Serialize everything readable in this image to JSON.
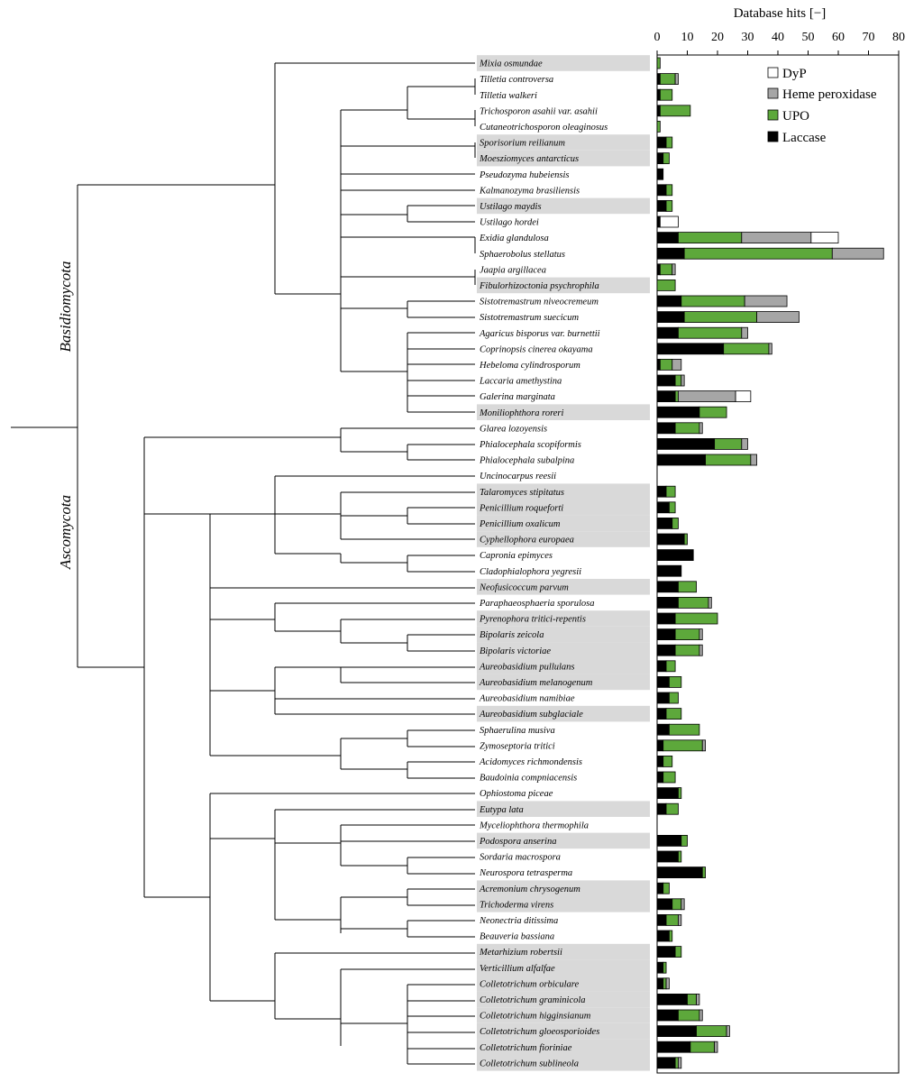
{
  "chart_data": {
    "type": "bar",
    "orientation": "horizontal",
    "stacked": true,
    "xlabel": "Database hits [−]",
    "xlim": [
      0,
      80
    ],
    "xticks": [
      0,
      10,
      20,
      30,
      40,
      50,
      60,
      70,
      80
    ],
    "legend": {
      "position": "top-right",
      "entries": [
        {
          "name": "DyP",
          "color": "#ffffff"
        },
        {
          "name": "Heme peroxidase",
          "color": "#a6a6a6"
        },
        {
          "name": "UPO",
          "color": "#5da83b"
        },
        {
          "name": "Laccase",
          "color": "#000000"
        }
      ]
    },
    "stack_order": [
      "Laccase",
      "UPO",
      "Heme peroxidase",
      "DyP"
    ],
    "colors": {
      "Laccase": "#000000",
      "UPO": "#5da83b",
      "Heme peroxidase": "#a6a6a6",
      "DyP": "#ffffff",
      "highlight": "#d9d9d9"
    },
    "phyla": [
      "Basidiomycota",
      "Ascomycota"
    ],
    "species": [
      {
        "name": "Mixia osmundae",
        "highlight": true,
        "Laccase": 0,
        "UPO": 1,
        "Heme peroxidase": 0,
        "DyP": 0
      },
      {
        "name": "Tilletia controversa",
        "highlight": false,
        "Laccase": 1,
        "UPO": 5,
        "Heme peroxidase": 1,
        "DyP": 0
      },
      {
        "name": "Tilletia walkeri",
        "highlight": false,
        "Laccase": 1,
        "UPO": 4,
        "Heme peroxidase": 0,
        "DyP": 0
      },
      {
        "name": "Trichosporon asahii var. asahii",
        "highlight": false,
        "Laccase": 1,
        "UPO": 10,
        "Heme peroxidase": 0,
        "DyP": 0
      },
      {
        "name": "Cutaneotrichosporon oleaginosus",
        "highlight": false,
        "Laccase": 0,
        "UPO": 1,
        "Heme peroxidase": 0,
        "DyP": 0
      },
      {
        "name": "Sporisorium reilianum",
        "highlight": true,
        "Laccase": 3,
        "UPO": 2,
        "Heme peroxidase": 0,
        "DyP": 0
      },
      {
        "name": "Moesziomyces antarcticus",
        "highlight": true,
        "Laccase": 2,
        "UPO": 2,
        "Heme peroxidase": 0,
        "DyP": 0
      },
      {
        "name": "Pseudozyma hubeiensis",
        "highlight": false,
        "Laccase": 2,
        "UPO": 0,
        "Heme peroxidase": 0,
        "DyP": 0
      },
      {
        "name": "Kalmanozyma brasiliensis",
        "highlight": false,
        "Laccase": 3,
        "UPO": 2,
        "Heme peroxidase": 0,
        "DyP": 0
      },
      {
        "name": "Ustilago maydis",
        "highlight": true,
        "Laccase": 3,
        "UPO": 2,
        "Heme peroxidase": 0,
        "DyP": 0
      },
      {
        "name": "Ustilago hordei",
        "highlight": false,
        "Laccase": 1,
        "UPO": 0,
        "Heme peroxidase": 0,
        "DyP": 6
      },
      {
        "name": "Exidia glandulosa",
        "highlight": false,
        "Laccase": 7,
        "UPO": 21,
        "Heme peroxidase": 23,
        "DyP": 9
      },
      {
        "name": "Sphaerobolus stellatus",
        "highlight": false,
        "Laccase": 9,
        "UPO": 49,
        "Heme peroxidase": 17,
        "DyP": 0
      },
      {
        "name": "Jaapia argillacea",
        "highlight": false,
        "Laccase": 1,
        "UPO": 4,
        "Heme peroxidase": 1,
        "DyP": 0
      },
      {
        "name": "Fibulorhizoctonia psychrophila",
        "highlight": true,
        "Laccase": 0,
        "UPO": 6,
        "Heme peroxidase": 0,
        "DyP": 0
      },
      {
        "name": "Sistotremastrum niveocremeum",
        "highlight": false,
        "Laccase": 8,
        "UPO": 21,
        "Heme peroxidase": 14,
        "DyP": 0
      },
      {
        "name": "Sistotremastrum suecicum",
        "highlight": false,
        "Laccase": 9,
        "UPO": 24,
        "Heme peroxidase": 14,
        "DyP": 0
      },
      {
        "name": "Agaricus bisporus var. burnettii",
        "highlight": false,
        "Laccase": 7,
        "UPO": 21,
        "Heme peroxidase": 2,
        "DyP": 0
      },
      {
        "name": "Coprinopsis cinerea okayama",
        "highlight": false,
        "Laccase": 22,
        "UPO": 15,
        "Heme peroxidase": 1,
        "DyP": 0
      },
      {
        "name": "Hebeloma cylindrosporum",
        "highlight": false,
        "Laccase": 1,
        "UPO": 4,
        "Heme peroxidase": 3,
        "DyP": 0
      },
      {
        "name": "Laccaria amethystina",
        "highlight": false,
        "Laccase": 6,
        "UPO": 2,
        "Heme peroxidase": 1,
        "DyP": 0
      },
      {
        "name": "Galerina marginata",
        "highlight": false,
        "Laccase": 6,
        "UPO": 1,
        "Heme peroxidase": 19,
        "DyP": 5
      },
      {
        "name": "Moniliophthora roreri",
        "highlight": true,
        "Laccase": 14,
        "UPO": 9,
        "Heme peroxidase": 0,
        "DyP": 0
      },
      {
        "name": "Glarea lozoyensis",
        "highlight": false,
        "Laccase": 6,
        "UPO": 8,
        "Heme peroxidase": 1,
        "DyP": 0
      },
      {
        "name": "Phialocephala scopiformis",
        "highlight": false,
        "Laccase": 19,
        "UPO": 9,
        "Heme peroxidase": 2,
        "DyP": 0
      },
      {
        "name": "Phialocephala subalpina",
        "highlight": false,
        "Laccase": 16,
        "UPO": 15,
        "Heme peroxidase": 2,
        "DyP": 0
      },
      {
        "name": "Uncinocarpus reesii",
        "highlight": false,
        "Laccase": 0,
        "UPO": 0,
        "Heme peroxidase": 0,
        "DyP": 0
      },
      {
        "name": "Talaromyces stipitatus",
        "highlight": true,
        "Laccase": 3,
        "UPO": 3,
        "Heme peroxidase": 0,
        "DyP": 0
      },
      {
        "name": "Penicillium roqueforti",
        "highlight": true,
        "Laccase": 4,
        "UPO": 2,
        "Heme peroxidase": 0,
        "DyP": 0
      },
      {
        "name": "Penicillium oxalicum",
        "highlight": true,
        "Laccase": 5,
        "UPO": 2,
        "Heme peroxidase": 0,
        "DyP": 0
      },
      {
        "name": "Cyphellophora europaea",
        "highlight": true,
        "Laccase": 9,
        "UPO": 1,
        "Heme peroxidase": 0,
        "DyP": 0
      },
      {
        "name": "Capronia epimyces",
        "highlight": false,
        "Laccase": 12,
        "UPO": 0,
        "Heme peroxidase": 0,
        "DyP": 0
      },
      {
        "name": "Cladophialophora yegresii",
        "highlight": false,
        "Laccase": 8,
        "UPO": 0,
        "Heme peroxidase": 0,
        "DyP": 0
      },
      {
        "name": "Neofusicoccum parvum",
        "highlight": true,
        "Laccase": 7,
        "UPO": 6,
        "Heme peroxidase": 0,
        "DyP": 0
      },
      {
        "name": "Paraphaeosphaeria sporulosa",
        "highlight": false,
        "Laccase": 7,
        "UPO": 10,
        "Heme peroxidase": 1,
        "DyP": 0
      },
      {
        "name": "Pyrenophora tritici-repentis",
        "highlight": true,
        "Laccase": 6,
        "UPO": 14,
        "Heme peroxidase": 0,
        "DyP": 0
      },
      {
        "name": "Bipolaris zeicola",
        "highlight": true,
        "Laccase": 6,
        "UPO": 8,
        "Heme peroxidase": 1,
        "DyP": 0
      },
      {
        "name": "Bipolaris victoriae",
        "highlight": true,
        "Laccase": 6,
        "UPO": 8,
        "Heme peroxidase": 1,
        "DyP": 0
      },
      {
        "name": "Aureobasidium pullulans",
        "highlight": true,
        "Laccase": 3,
        "UPO": 3,
        "Heme peroxidase": 0,
        "DyP": 0
      },
      {
        "name": "Aureobasidium melanogenum",
        "highlight": true,
        "Laccase": 4,
        "UPO": 4,
        "Heme peroxidase": 0,
        "DyP": 0
      },
      {
        "name": "Aureobasidium namibiae",
        "highlight": false,
        "Laccase": 4,
        "UPO": 3,
        "Heme peroxidase": 0,
        "DyP": 0
      },
      {
        "name": "Aureobasidium subglaciale",
        "highlight": true,
        "Laccase": 3,
        "UPO": 5,
        "Heme peroxidase": 0,
        "DyP": 0
      },
      {
        "name": "Sphaerulina musiva",
        "highlight": false,
        "Laccase": 4,
        "UPO": 10,
        "Heme peroxidase": 0,
        "DyP": 0
      },
      {
        "name": "Zymoseptoria tritici",
        "highlight": false,
        "Laccase": 2,
        "UPO": 13,
        "Heme peroxidase": 1,
        "DyP": 0
      },
      {
        "name": "Acidomyces richmondensis",
        "highlight": false,
        "Laccase": 2,
        "UPO": 3,
        "Heme peroxidase": 0,
        "DyP": 0
      },
      {
        "name": "Baudoinia compniacensis",
        "highlight": false,
        "Laccase": 2,
        "UPO": 4,
        "Heme peroxidase": 0,
        "DyP": 0
      },
      {
        "name": "Ophiostoma piceae",
        "highlight": false,
        "Laccase": 7,
        "UPO": 1,
        "Heme peroxidase": 0,
        "DyP": 0
      },
      {
        "name": "Eutypa lata",
        "highlight": true,
        "Laccase": 3,
        "UPO": 4,
        "Heme peroxidase": 0,
        "DyP": 0
      },
      {
        "name": "Myceliophthora thermophila",
        "highlight": false,
        "Laccase": 0,
        "UPO": 0,
        "Heme peroxidase": 0,
        "DyP": 0
      },
      {
        "name": "Podospora anserina",
        "highlight": true,
        "Laccase": 8,
        "UPO": 2,
        "Heme peroxidase": 0,
        "DyP": 0
      },
      {
        "name": "Sordaria macrospora",
        "highlight": false,
        "Laccase": 7,
        "UPO": 1,
        "Heme peroxidase": 0,
        "DyP": 0
      },
      {
        "name": "Neurospora tetrasperma",
        "highlight": false,
        "Laccase": 15,
        "UPO": 1,
        "Heme peroxidase": 0,
        "DyP": 0
      },
      {
        "name": "Acremonium chrysogenum",
        "highlight": true,
        "Laccase": 2,
        "UPO": 2,
        "Heme peroxidase": 0,
        "DyP": 0
      },
      {
        "name": "Trichoderma virens",
        "highlight": true,
        "Laccase": 5,
        "UPO": 3,
        "Heme peroxidase": 1,
        "DyP": 0
      },
      {
        "name": "Neonectria ditissima",
        "highlight": false,
        "Laccase": 3,
        "UPO": 4,
        "Heme peroxidase": 1,
        "DyP": 0
      },
      {
        "name": "Beauveria bassiana",
        "highlight": false,
        "Laccase": 4,
        "UPO": 1,
        "Heme peroxidase": 0,
        "DyP": 0
      },
      {
        "name": "Metarhizium robertsii",
        "highlight": true,
        "Laccase": 6,
        "UPO": 2,
        "Heme peroxidase": 0,
        "DyP": 0
      },
      {
        "name": "Verticillium alfalfae",
        "highlight": true,
        "Laccase": 2,
        "UPO": 1,
        "Heme peroxidase": 0,
        "DyP": 0
      },
      {
        "name": "Colletotrichum orbiculare",
        "highlight": true,
        "Laccase": 2,
        "UPO": 1,
        "Heme peroxidase": 1,
        "DyP": 0
      },
      {
        "name": "Colletotrichum graminicola",
        "highlight": true,
        "Laccase": 10,
        "UPO": 3,
        "Heme peroxidase": 1,
        "DyP": 0
      },
      {
        "name": "Colletotrichum higginsianum",
        "highlight": true,
        "Laccase": 7,
        "UPO": 7,
        "Heme peroxidase": 1,
        "DyP": 0
      },
      {
        "name": "Colletotrichum gloeosporioides",
        "highlight": true,
        "Laccase": 13,
        "UPO": 10,
        "Heme peroxidase": 1,
        "DyP": 0
      },
      {
        "name": "Colletotrichum fioriniae",
        "highlight": true,
        "Laccase": 11,
        "UPO": 8,
        "Heme peroxidase": 1,
        "DyP": 0
      },
      {
        "name": "Colletotrichum sublineola",
        "highlight": true,
        "Laccase": 6,
        "UPO": 1,
        "Heme peroxidase": 1,
        "DyP": 0
      }
    ]
  }
}
